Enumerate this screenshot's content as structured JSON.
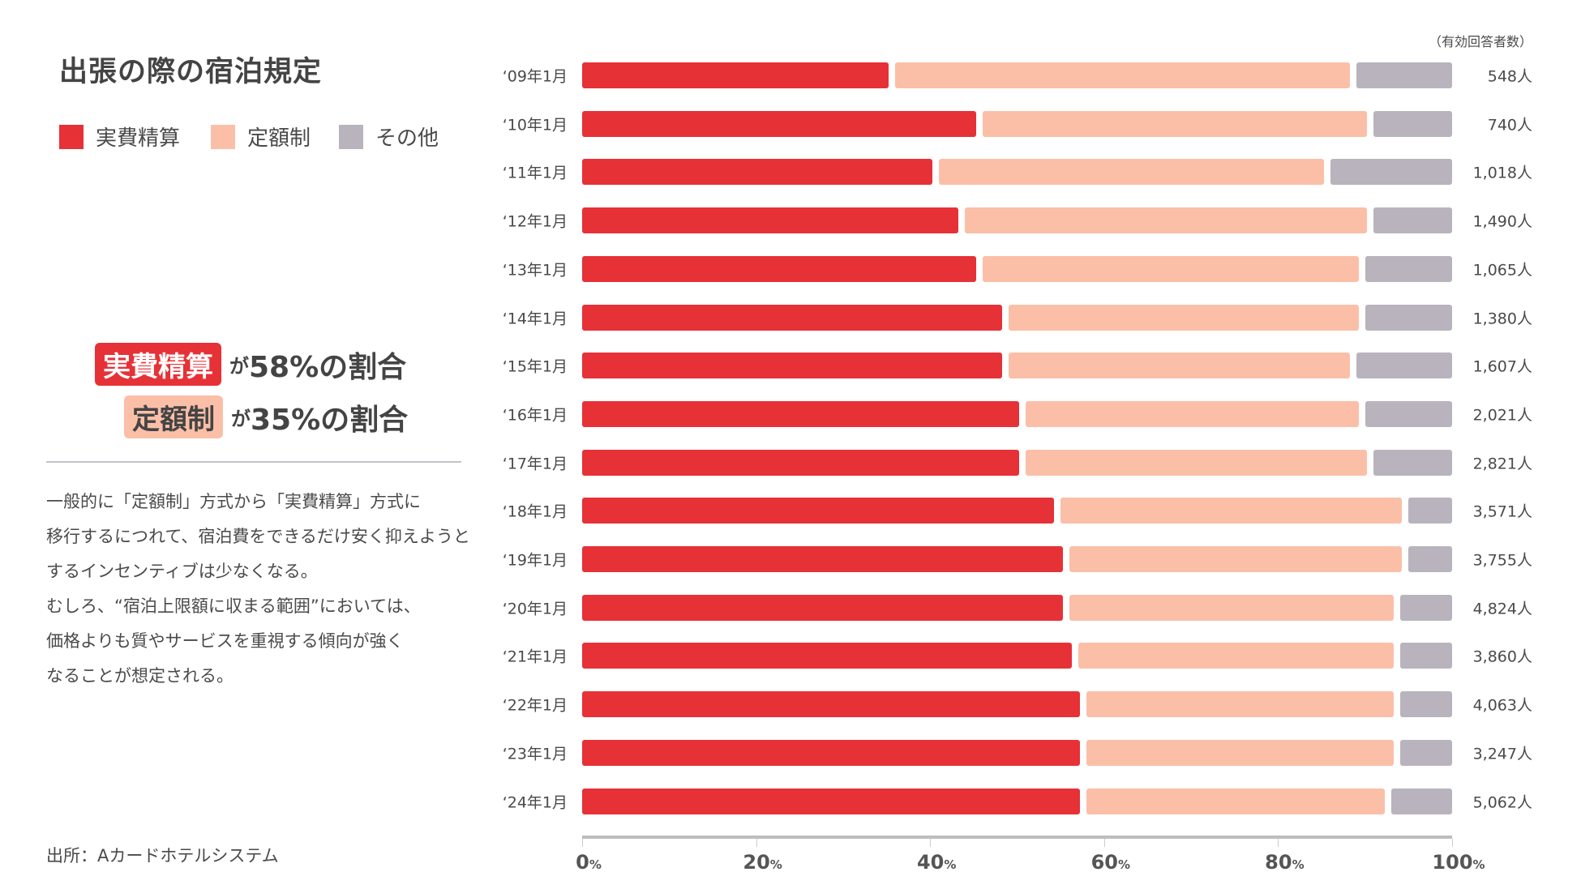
{
  "title": "出張の際の宿泊規定",
  "legend": [
    {
      "label": "実費精算",
      "color": "#e63137"
    },
    {
      "label": "定額制",
      "color": "#fbbfa8"
    },
    {
      "label": "その他",
      "color": "#b8b3bd"
    }
  ],
  "highlights": [
    {
      "badge": "実費精算",
      "text_pre": "が",
      "text_value": "58%の割合"
    },
    {
      "badge": "定額制",
      "text_pre": "が",
      "text_value": "35%の割合"
    }
  ],
  "paragraph": [
    "一般的に「定額制」方式から「実費精算」方式に",
    "移行するにつれて、宿泊費をできるだけ安く抑えようと",
    "するインセンティブは少なくなる。",
    "むしろ、“宿泊上限額に収まる範囲”においては、",
    "価格よりも質やサービスを重視する傾向が強く",
    "なることが想定される。"
  ],
  "source": "出所：Aカードホテルシステム",
  "chart_data": {
    "type": "bar",
    "orientation": "horizontal-stacked-100",
    "title": "出張の際の宿泊規定",
    "count_header": "（有効回答者数）",
    "categories": [
      "‘09年1月",
      "‘10年1月",
      "‘11年1月",
      "‘12年1月",
      "‘13年1月",
      "‘14年1月",
      "‘15年1月",
      "‘16年1月",
      "‘17年1月",
      "‘18年1月",
      "‘19年1月",
      "‘20年1月",
      "‘21年1月",
      "‘22年1月",
      "‘23年1月",
      "‘24年1月"
    ],
    "series": [
      {
        "name": "実費精算",
        "color": "#e63137",
        "values": [
          36,
          46,
          41,
          44,
          46,
          49,
          49,
          51,
          51,
          55,
          56,
          56,
          57,
          58,
          58,
          58
        ]
      },
      {
        "name": "定額制",
        "color": "#fbbfa8",
        "values": [
          53,
          45,
          45,
          47,
          44,
          41,
          40,
          39,
          40,
          40,
          39,
          38,
          37,
          36,
          36,
          35
        ]
      },
      {
        "name": "その他",
        "color": "#b8b3bd",
        "values": [
          11,
          9,
          14,
          9,
          10,
          10,
          11,
          10,
          9,
          5,
          5,
          6,
          6,
          6,
          6,
          7
        ]
      }
    ],
    "counts": [
      "548人",
      "740人",
      "1,018人",
      "1,490人",
      "1,065人",
      "1,380人",
      "1,607人",
      "2,021人",
      "2,821人",
      "3,571人",
      "3,755人",
      "4,824人",
      "3,860人",
      "4,063人",
      "3,247人",
      "5,062人"
    ],
    "xlim": [
      0,
      100
    ],
    "xticks": [
      {
        "num": "0",
        "unit": "%"
      },
      {
        "num": "20",
        "unit": "%"
      },
      {
        "num": "40",
        "unit": "%"
      },
      {
        "num": "60",
        "unit": "%"
      },
      {
        "num": "80",
        "unit": "%"
      },
      {
        "num": "100",
        "unit": "%"
      }
    ]
  }
}
